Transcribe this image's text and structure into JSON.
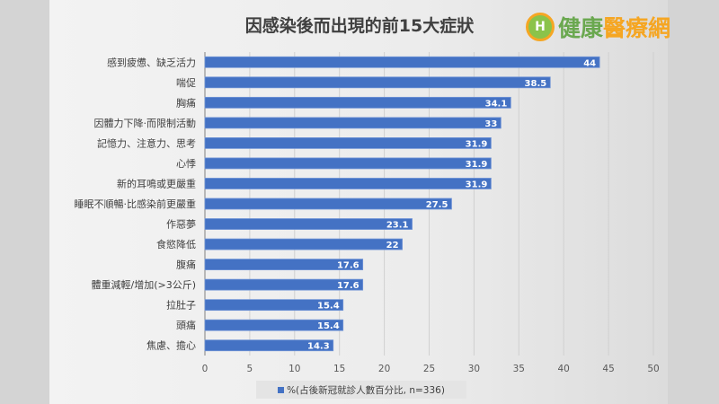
{
  "logo": {
    "text_green": "健康",
    "text_orange": "醫療網"
  },
  "chart_data": {
    "type": "bar",
    "orientation": "horizontal",
    "title": "因感染後而出現的前15大症狀",
    "categories": [
      "感到疲憊、缺乏活力",
      "喘促",
      "胸痛",
      "因體力下降·而限制活動",
      "記憶力、注意力、思考",
      "心悸",
      "新的耳鳴或更嚴重",
      "睡眠不順暢·比感染前更嚴重",
      "作惡夢",
      "食慾降低",
      "腹痛",
      "體重減輕/增加(>3公斤)",
      "拉肚子",
      "頭痛",
      "焦慮、擔心"
    ],
    "series": [
      {
        "name": "%(占後新冠就診人數百分比, n=336)",
        "values": [
          44,
          38.5,
          34.1,
          33,
          31.9,
          31.9,
          31.9,
          27.5,
          23.1,
          22,
          17.6,
          17.6,
          15.4,
          15.4,
          14.3
        ],
        "color": "#4472c4"
      }
    ],
    "xlim": [
      0,
      50
    ],
    "xticks": [
      0,
      5,
      10,
      15,
      20,
      25,
      30,
      35,
      40,
      45,
      50
    ],
    "grid": true,
    "legend_position": "bottom",
    "data_labels": true
  }
}
